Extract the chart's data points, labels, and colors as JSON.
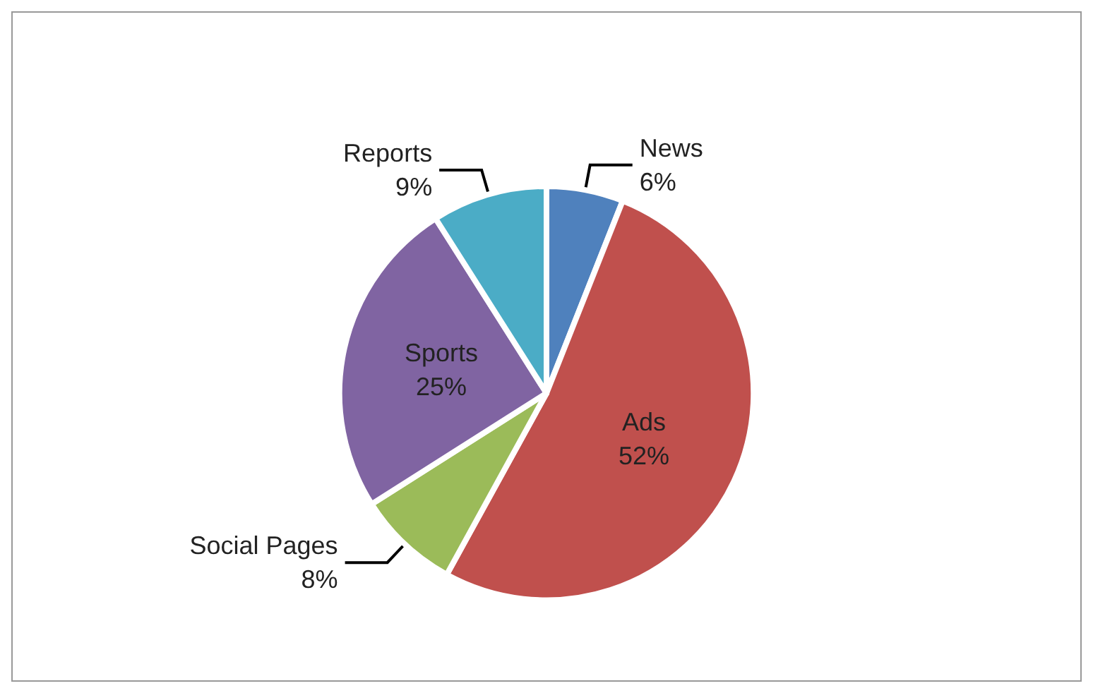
{
  "chart_data": {
    "type": "pie",
    "categories": [
      "News",
      "Ads",
      "Social Pages",
      "Sports",
      "Reports"
    ],
    "values": [
      6,
      52,
      8,
      25,
      9
    ],
    "value_labels": [
      "6%",
      "52%",
      "8%",
      "25%",
      "9%"
    ],
    "colors": [
      "#4f81bd",
      "#c0504d",
      "#9bbb59",
      "#8064a2",
      "#4bacc6"
    ],
    "legend": false
  }
}
